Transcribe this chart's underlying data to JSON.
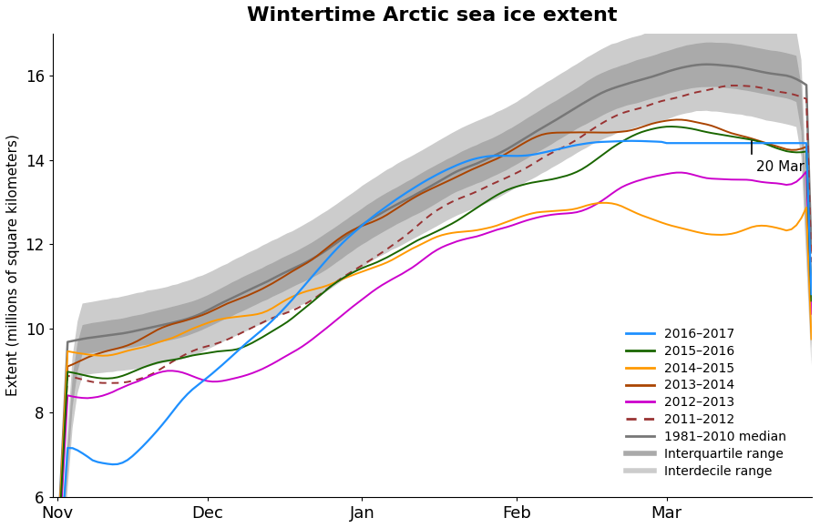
{
  "title": "Wintertime Arctic sea ice extent",
  "ylabel": "Extent (millions of square kilometers)",
  "ylim": [
    6,
    17
  ],
  "yticks": [
    6,
    8,
    10,
    12,
    14,
    16
  ],
  "xlabel_ticks": [
    "Nov",
    "Dec",
    "Jan",
    "Feb",
    "Mar"
  ],
  "colors": {
    "2016-2017": "#1E90FF",
    "2015-2016": "#1A6600",
    "2014-2015": "#FF9900",
    "2013-2014": "#AA4400",
    "2012-2013": "#CC00CC",
    "2011-2012": "#993333",
    "median": "#777777",
    "interquartile": "#AAAAAA",
    "interdecile": "#CCCCCC"
  },
  "annotation": "20 Mar",
  "n_days": 152
}
